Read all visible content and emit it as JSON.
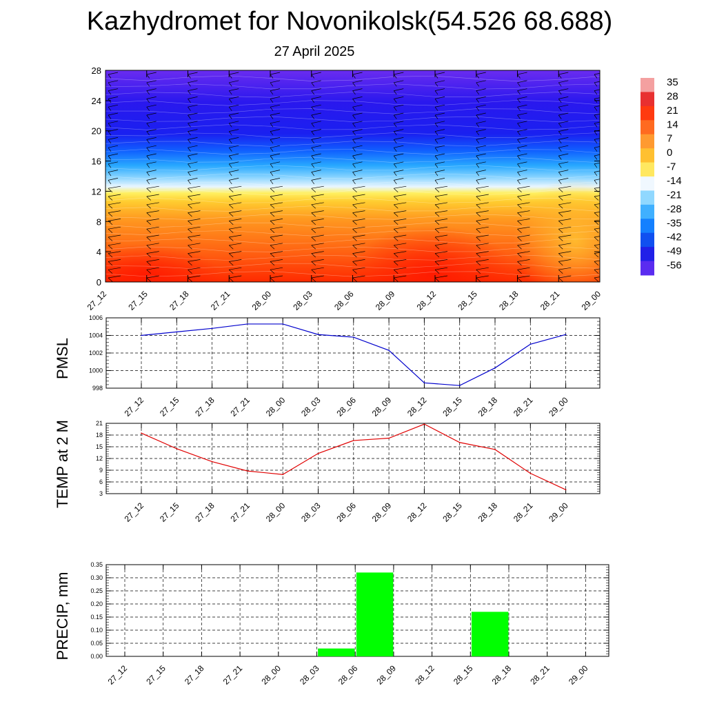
{
  "title": "Kazhydromet for Novonikolsk(54.526 68.688)",
  "subtitle": "27 April 2025",
  "colors": {
    "pmsl_line": "#0000cc",
    "temp_line": "#e00000",
    "precip_bar": "#00ff00",
    "grid": "#000000"
  },
  "chart_data": [
    {
      "type": "heatmap",
      "name": "cross-section",
      "y_ticks": [
        "0",
        "4",
        "8",
        "12",
        "16",
        "20",
        "24",
        "28"
      ],
      "ylim": [
        0,
        28
      ],
      "x_ticks": [
        "27_12",
        "27_15",
        "27_18",
        "27_21",
        "28_00",
        "28_03",
        "28_06",
        "28_09",
        "28_12",
        "28_15",
        "28_18",
        "28_21",
        "29_00"
      ],
      "colorbar_labels": [
        "35",
        "28",
        "21",
        "14",
        "7",
        "0",
        "-7",
        "-14",
        "-21",
        "-28",
        "-35",
        "-42",
        "-49",
        "-56"
      ],
      "wind_barbs": true
    },
    {
      "type": "line",
      "ylabel": "PMSL",
      "x": [
        "27_12",
        "27_15",
        "27_18",
        "27_21",
        "28_00",
        "28_03",
        "28_06",
        "28_09",
        "28_12",
        "28_15",
        "28_18",
        "28_21",
        "29_00"
      ],
      "values": [
        1004.0,
        1004.4,
        1004.8,
        1005.3,
        1005.3,
        1004.1,
        1003.8,
        1002.3,
        998.6,
        998.3,
        1000.3,
        1003.0,
        1004.1
      ],
      "y_ticks": [
        "998",
        "1000",
        "1002",
        "1004",
        "1006"
      ],
      "ylim": [
        998,
        1006
      ],
      "grid": true
    },
    {
      "type": "line",
      "ylabel": "TEMP at 2 M",
      "x": [
        "27_12",
        "27_15",
        "27_18",
        "27_21",
        "28_00",
        "28_03",
        "28_06",
        "28_09",
        "28_12",
        "28_15",
        "28_18",
        "28_21",
        "29_00"
      ],
      "values": [
        18.5,
        14.5,
        11.2,
        8.8,
        7.9,
        13.3,
        16.6,
        17.2,
        20.8,
        16.1,
        14.3,
        8.2,
        4.0
      ],
      "y_ticks": [
        "3",
        "6",
        "9",
        "12",
        "15",
        "18",
        "21"
      ],
      "ylim": [
        3,
        21
      ],
      "grid": true
    },
    {
      "type": "bar",
      "ylabel": "PRECIP, mm",
      "categories": [
        "27_12",
        "27_15",
        "27_18",
        "27_21",
        "28_00",
        "28_03",
        "28_06",
        "28_09",
        "28_12",
        "28_15",
        "28_18",
        "28_21",
        "29_00"
      ],
      "values": [
        0,
        0,
        0,
        0,
        0,
        0,
        0.03,
        0.32,
        0,
        0,
        0.17,
        0,
        0
      ],
      "y_ticks": [
        "0.00",
        "0.05",
        "0.10",
        "0.15",
        "0.20",
        "0.25",
        "0.30",
        "0.35"
      ],
      "ylim": [
        0,
        0.35
      ],
      "grid": true
    }
  ]
}
